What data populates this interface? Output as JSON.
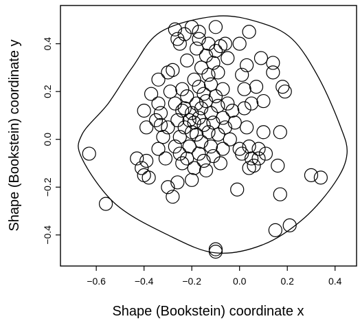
{
  "chart_data": {
    "type": "scatter",
    "title": "",
    "xlabel": "Shape (Bookstein) coordinate x",
    "ylabel": "Shape (Bookstein) coordinate y",
    "xlim": [
      -0.75,
      0.49
    ],
    "ylim": [
      -0.53,
      0.56
    ],
    "x_ticks": [
      -0.6,
      -0.4,
      -0.2,
      0.0,
      0.2,
      0.4
    ],
    "x_tick_labels": [
      "−0.6",
      "−0.4",
      "−0.2",
      "0.0",
      "0.2",
      "0.4"
    ],
    "y_ticks": [
      -0.4,
      -0.2,
      0.0,
      0.2,
      0.4
    ],
    "y_tick_labels": [
      "−0.4",
      "−0.2",
      "0.0",
      "0.2",
      "0.4"
    ],
    "grid": false,
    "marker": "open-circle",
    "marker_color": "#000000",
    "points": [
      [
        -0.63,
        -0.06
      ],
      [
        -0.56,
        -0.27
      ],
      [
        -0.43,
        -0.08
      ],
      [
        -0.41,
        -0.12
      ],
      [
        -0.4,
        -0.15
      ],
      [
        -0.39,
        -0.09
      ],
      [
        -0.38,
        -0.16
      ],
      [
        -0.4,
        0.12
      ],
      [
        -0.39,
        0.05
      ],
      [
        -0.37,
        0.19
      ],
      [
        -0.35,
        0.08
      ],
      [
        -0.34,
        0.15
      ],
      [
        -0.34,
        0.25
      ],
      [
        -0.34,
        -0.04
      ],
      [
        -0.33,
        0.11
      ],
      [
        -0.33,
        0.06
      ],
      [
        -0.32,
        0.01
      ],
      [
        -0.31,
        -0.08
      ],
      [
        -0.3,
        -0.2
      ],
      [
        -0.3,
        0.28
      ],
      [
        -0.3,
        0.05
      ],
      [
        -0.29,
        0.2
      ],
      [
        -0.28,
        0.29
      ],
      [
        -0.28,
        -0.24
      ],
      [
        -0.27,
        0.15
      ],
      [
        -0.27,
        -0.03
      ],
      [
        -0.26,
        0.08
      ],
      [
        -0.26,
        -0.18
      ],
      [
        -0.25,
        0.01
      ],
      [
        -0.25,
        -0.06
      ],
      [
        -0.24,
        0.12
      ],
      [
        -0.24,
        0.21
      ],
      [
        -0.24,
        -0.1
      ],
      [
        -0.23,
        0.05
      ],
      [
        -0.23,
        0.13
      ],
      [
        -0.22,
        -0.08
      ],
      [
        -0.22,
        0.18
      ],
      [
        -0.22,
        0.33
      ],
      [
        -0.21,
        0.08
      ],
      [
        -0.21,
        -0.03
      ],
      [
        -0.2,
        0.03
      ],
      [
        -0.2,
        -0.17
      ],
      [
        -0.2,
        0.11
      ],
      [
        -0.19,
        0.25
      ],
      [
        -0.19,
        0.07
      ],
      [
        -0.19,
        -0.12
      ],
      [
        -0.18,
        0.15
      ],
      [
        -0.18,
        0.02
      ],
      [
        -0.18,
        0.38
      ],
      [
        -0.17,
        0.09
      ],
      [
        -0.17,
        0.22
      ],
      [
        -0.17,
        -0.06
      ],
      [
        -0.17,
        0.42
      ],
      [
        -0.16,
        0.13
      ],
      [
        -0.16,
        -0.01
      ],
      [
        -0.16,
        0.3
      ],
      [
        -0.15,
        0.06
      ],
      [
        -0.15,
        0.19
      ],
      [
        -0.15,
        -0.09
      ],
      [
        -0.14,
        0.35
      ],
      [
        -0.14,
        -0.13
      ],
      [
        -0.14,
        0.16
      ],
      [
        -0.13,
        0.03
      ],
      [
        -0.13,
        0.27
      ],
      [
        -0.13,
        0.4
      ],
      [
        -0.12,
        0.11
      ],
      [
        -0.12,
        -0.03
      ],
      [
        -0.12,
        0.23
      ],
      [
        -0.11,
        0.32
      ],
      [
        -0.11,
        0.07
      ],
      [
        -0.11,
        -0.07
      ],
      [
        -0.1,
        0.37
      ],
      [
        -0.1,
        0.18
      ],
      [
        -0.1,
        -0.47
      ],
      [
        -0.1,
        -0.46
      ],
      [
        -0.09,
        0.02
      ],
      [
        -0.09,
        0.14
      ],
      [
        -0.09,
        0.28
      ],
      [
        -0.08,
        -0.1
      ],
      [
        -0.08,
        0.39
      ],
      [
        -0.07,
        0.09
      ],
      [
        -0.07,
        -0.04
      ],
      [
        -0.07,
        0.21
      ],
      [
        -0.06,
        0.4
      ],
      [
        -0.06,
        0.05
      ],
      [
        -0.05,
        0.34
      ],
      [
        -0.05,
        0.15
      ],
      [
        -0.04,
        0.0
      ],
      [
        -0.03,
        0.12
      ],
      [
        -0.02,
        0.07
      ],
      [
        -0.01,
        -0.21
      ],
      [
        0.0,
        -0.04
      ],
      [
        0.0,
        0.4
      ],
      [
        0.01,
        0.27
      ],
      [
        0.01,
        -0.06
      ],
      [
        0.02,
        0.13
      ],
      [
        0.02,
        0.21
      ],
      [
        0.03,
        0.05
      ],
      [
        0.03,
        0.31
      ],
      [
        0.04,
        -0.12
      ],
      [
        0.04,
        -0.03
      ],
      [
        0.04,
        0.45
      ],
      [
        0.05,
        0.15
      ],
      [
        0.05,
        -0.08
      ],
      [
        0.06,
        -0.11
      ],
      [
        0.07,
        0.22
      ],
      [
        0.08,
        -0.04
      ],
      [
        0.08,
        -0.08
      ],
      [
        0.09,
        0.34
      ],
      [
        0.1,
        0.03
      ],
      [
        0.1,
        0.16
      ],
      [
        0.11,
        -0.06
      ],
      [
        0.14,
        0.32
      ],
      [
        0.14,
        0.28
      ],
      [
        0.15,
        -0.38
      ],
      [
        0.16,
        -0.11
      ],
      [
        0.17,
        0.03
      ],
      [
        0.17,
        -0.23
      ],
      [
        0.18,
        0.22
      ],
      [
        0.19,
        0.2
      ],
      [
        0.21,
        -0.36
      ],
      [
        0.3,
        -0.15
      ],
      [
        0.34,
        -0.16
      ],
      [
        -0.26,
        0.42
      ],
      [
        -0.23,
        0.44
      ],
      [
        -0.2,
        0.47
      ],
      [
        -0.17,
        0.45
      ],
      [
        -0.1,
        0.47
      ],
      [
        -0.25,
        0.4
      ],
      [
        -0.27,
        0.46
      ]
    ],
    "annotations": [
      {
        "type": "closed-contour",
        "description": "convex outline enclosing all points"
      }
    ]
  }
}
